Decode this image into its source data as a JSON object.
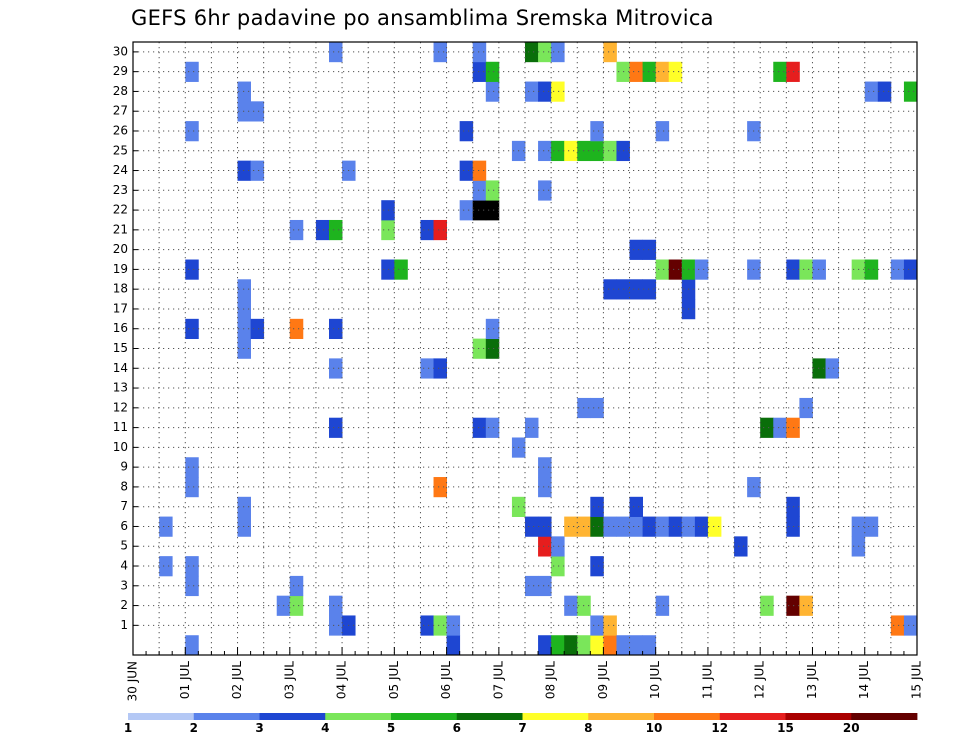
{
  "chart_data": {
    "type": "heatmap",
    "title": "GEFS 6hr padavine po ansamblima Sremska Mitrovica",
    "xlabel": "",
    "ylabel": "",
    "x_range": [
      "2016-06-30T00:00",
      "2016-07-15T00:00"
    ],
    "time_step_hours": 6,
    "x_tick_labels": [
      "30 JUN",
      "01 JUL",
      "02 JUL",
      "03 JUL",
      "04 JUL",
      "05 JUL",
      "06 JUL",
      "07 JUL",
      "08 JUL",
      "09 JUL",
      "10 JUL",
      "11 JUL",
      "12 JUL",
      "13 JUL",
      "14 JUL",
      "15 JUL"
    ],
    "y_tick_labels": [
      "1",
      "2",
      "3",
      "4",
      "5",
      "6",
      "7",
      "8",
      "9",
      "10",
      "11",
      "12",
      "13",
      "14",
      "15",
      "16",
      "17",
      "18",
      "19",
      "20",
      "21",
      "22",
      "23",
      "24",
      "25",
      "26",
      "27",
      "28",
      "29",
      "30"
    ],
    "y_range": [
      0,
      30
    ],
    "grid": true,
    "legend_placement": "bottom",
    "legend": {
      "labels": [
        "1",
        "2",
        "3",
        "4",
        "5",
        "6",
        "7",
        "8",
        "10",
        "12",
        "15",
        "20"
      ],
      "colors": [
        "#b4c8f5",
        "#5a82eb",
        "#1e46d2",
        "#7ae65a",
        "#1eb41e",
        "#0a6e0a",
        "#ffff28",
        "#ffb432",
        "#ff7814",
        "#e61e1e",
        "#aa0000",
        "#640000"
      ]
    },
    "cells": [
      [
        "2016-06-30T12:00",
        4,
        1
      ],
      [
        "2016-06-30T12:00",
        6,
        1
      ],
      [
        "2016-07-01T00:00",
        0,
        1
      ],
      [
        "2016-07-01T00:00",
        3,
        1
      ],
      [
        "2016-07-01T00:00",
        4,
        1
      ],
      [
        "2016-07-01T00:00",
        8,
        1
      ],
      [
        "2016-07-01T00:00",
        9,
        1
      ],
      [
        "2016-07-01T00:00",
        16,
        2
      ],
      [
        "2016-07-01T00:00",
        19,
        2
      ],
      [
        "2016-07-01T00:00",
        26,
        1
      ],
      [
        "2016-07-01T00:00",
        29,
        1
      ],
      [
        "2016-07-02T00:00",
        6,
        1
      ],
      [
        "2016-07-02T00:00",
        7,
        1
      ],
      [
        "2016-07-02T00:00",
        15,
        1
      ],
      [
        "2016-07-02T00:00",
        16,
        1
      ],
      [
        "2016-07-02T00:00",
        17,
        1
      ],
      [
        "2016-07-02T00:00",
        18,
        1
      ],
      [
        "2016-07-02T00:00",
        24,
        2
      ],
      [
        "2016-07-02T00:00",
        27,
        1
      ],
      [
        "2016-07-02T00:00",
        28,
        1
      ],
      [
        "2016-07-02T06:00",
        16,
        2
      ],
      [
        "2016-07-02T06:00",
        24,
        1
      ],
      [
        "2016-07-02T06:00",
        27,
        1
      ],
      [
        "2016-07-02T18:00",
        2,
        1
      ],
      [
        "2016-07-03T00:00",
        2,
        3
      ],
      [
        "2016-07-03T00:00",
        3,
        1
      ],
      [
        "2016-07-03T00:00",
        16,
        8
      ],
      [
        "2016-07-03T00:00",
        21,
        1
      ],
      [
        "2016-07-03T12:00",
        21,
        2
      ],
      [
        "2016-07-03T18:00",
        1,
        1
      ],
      [
        "2016-07-03T18:00",
        2,
        1
      ],
      [
        "2016-07-03T18:00",
        11,
        2
      ],
      [
        "2016-07-03T18:00",
        14,
        1
      ],
      [
        "2016-07-03T18:00",
        16,
        2
      ],
      [
        "2016-07-03T18:00",
        21,
        4
      ],
      [
        "2016-07-03T18:00",
        30,
        1
      ],
      [
        "2016-07-04T00:00",
        1,
        2
      ],
      [
        "2016-07-04T00:00",
        24,
        1
      ],
      [
        "2016-07-04T18:00",
        19,
        2
      ],
      [
        "2016-07-04T18:00",
        21,
        3
      ],
      [
        "2016-07-04T18:00",
        22,
        2
      ],
      [
        "2016-07-05T00:00",
        19,
        4
      ],
      [
        "2016-07-05T12:00",
        1,
        2
      ],
      [
        "2016-07-05T12:00",
        14,
        1
      ],
      [
        "2016-07-05T12:00",
        21,
        2
      ],
      [
        "2016-07-05T18:00",
        1,
        3
      ],
      [
        "2016-07-05T18:00",
        8,
        8
      ],
      [
        "2016-07-05T18:00",
        14,
        2
      ],
      [
        "2016-07-05T18:00",
        21,
        9
      ],
      [
        "2016-07-05T18:00",
        30,
        1
      ],
      [
        "2016-07-06T00:00",
        0,
        2
      ],
      [
        "2016-07-06T00:00",
        1,
        1
      ],
      [
        "2016-07-06T06:00",
        22,
        1
      ],
      [
        "2016-07-06T06:00",
        24,
        2
      ],
      [
        "2016-07-06T06:00",
        26,
        2
      ],
      [
        "2016-07-06T12:00",
        11,
        2
      ],
      [
        "2016-07-06T12:00",
        15,
        3
      ],
      [
        "2016-07-06T12:00",
        22,
        12
      ],
      [
        "2016-07-06T12:00",
        23,
        1
      ],
      [
        "2016-07-06T12:00",
        24,
        8
      ],
      [
        "2016-07-06T12:00",
        29,
        2
      ],
      [
        "2016-07-06T12:00",
        30,
        1
      ],
      [
        "2016-07-06T18:00",
        11,
        1
      ],
      [
        "2016-07-06T18:00",
        15,
        5
      ],
      [
        "2016-07-06T18:00",
        16,
        1
      ],
      [
        "2016-07-06T18:00",
        22,
        12
      ],
      [
        "2016-07-06T18:00",
        23,
        3
      ],
      [
        "2016-07-06T18:00",
        28,
        1
      ],
      [
        "2016-07-06T18:00",
        29,
        4
      ],
      [
        "2016-07-07T06:00",
        7,
        3
      ],
      [
        "2016-07-07T06:00",
        10,
        1
      ],
      [
        "2016-07-07T06:00",
        25,
        1
      ],
      [
        "2016-07-07T12:00",
        3,
        1
      ],
      [
        "2016-07-07T12:00",
        6,
        2
      ],
      [
        "2016-07-07T12:00",
        11,
        1
      ],
      [
        "2016-07-07T12:00",
        28,
        1
      ],
      [
        "2016-07-07T12:00",
        30,
        5
      ],
      [
        "2016-07-07T18:00",
        3,
        1
      ],
      [
        "2016-07-07T18:00",
        5,
        9
      ],
      [
        "2016-07-07T18:00",
        6,
        2
      ],
      [
        "2016-07-07T18:00",
        8,
        1
      ],
      [
        "2016-07-07T18:00",
        9,
        1
      ],
      [
        "2016-07-07T18:00",
        23,
        1
      ],
      [
        "2016-07-07T18:00",
        25,
        1
      ],
      [
        "2016-07-07T18:00",
        28,
        2
      ],
      [
        "2016-07-07T18:00",
        0,
        2
      ],
      [
        "2016-07-07T18:00",
        30,
        3
      ],
      [
        "2016-07-08T00:00",
        0,
        4
      ],
      [
        "2016-07-08T00:00",
        4,
        3
      ],
      [
        "2016-07-08T00:00",
        5,
        1
      ],
      [
        "2016-07-08T00:00",
        25,
        4
      ],
      [
        "2016-07-08T00:00",
        28,
        6
      ],
      [
        "2016-07-08T00:00",
        30,
        1
      ],
      [
        "2016-07-08T06:00",
        0,
        5
      ],
      [
        "2016-07-08T06:00",
        2,
        1
      ],
      [
        "2016-07-08T06:00",
        6,
        7
      ],
      [
        "2016-07-08T06:00",
        25,
        6
      ],
      [
        "2016-07-08T12:00",
        0,
        3
      ],
      [
        "2016-07-08T12:00",
        2,
        3
      ],
      [
        "2016-07-08T12:00",
        6,
        7
      ],
      [
        "2016-07-08T12:00",
        12,
        1
      ],
      [
        "2016-07-08T12:00",
        25,
        4
      ],
      [
        "2016-07-08T18:00",
        0,
        6
      ],
      [
        "2016-07-08T18:00",
        1,
        1
      ],
      [
        "2016-07-08T18:00",
        4,
        2
      ],
      [
        "2016-07-08T18:00",
        6,
        5
      ],
      [
        "2016-07-08T18:00",
        7,
        2
      ],
      [
        "2016-07-08T18:00",
        12,
        1
      ],
      [
        "2016-07-08T18:00",
        25,
        4
      ],
      [
        "2016-07-08T18:00",
        26,
        1
      ],
      [
        "2016-07-09T00:00",
        0,
        8
      ],
      [
        "2016-07-09T00:00",
        1,
        7
      ],
      [
        "2016-07-09T00:00",
        6,
        1
      ],
      [
        "2016-07-09T00:00",
        18,
        2
      ],
      [
        "2016-07-09T00:00",
        25,
        3
      ],
      [
        "2016-07-09T00:00",
        30,
        7
      ],
      [
        "2016-07-09T06:00",
        0,
        1
      ],
      [
        "2016-07-09T06:00",
        6,
        1
      ],
      [
        "2016-07-09T06:00",
        18,
        2
      ],
      [
        "2016-07-09T06:00",
        25,
        2
      ],
      [
        "2016-07-09T06:00",
        29,
        3
      ],
      [
        "2016-07-09T12:00",
        0,
        1
      ],
      [
        "2016-07-09T12:00",
        6,
        1
      ],
      [
        "2016-07-09T12:00",
        7,
        2
      ],
      [
        "2016-07-09T12:00",
        18,
        2
      ],
      [
        "2016-07-09T12:00",
        20,
        2
      ],
      [
        "2016-07-09T12:00",
        29,
        8
      ],
      [
        "2016-07-09T18:00",
        0,
        1
      ],
      [
        "2016-07-09T18:00",
        6,
        2
      ],
      [
        "2016-07-09T18:00",
        18,
        2
      ],
      [
        "2016-07-09T18:00",
        20,
        2
      ],
      [
        "2016-07-09T18:00",
        29,
        4
      ],
      [
        "2016-07-10T00:00",
        2,
        1
      ],
      [
        "2016-07-10T00:00",
        6,
        1
      ],
      [
        "2016-07-10T00:00",
        19,
        3
      ],
      [
        "2016-07-10T00:00",
        26,
        1
      ],
      [
        "2016-07-10T00:00",
        29,
        7
      ],
      [
        "2016-07-10T06:00",
        6,
        2
      ],
      [
        "2016-07-10T06:00",
        19,
        11
      ],
      [
        "2016-07-10T06:00",
        29,
        6
      ],
      [
        "2016-07-10T12:00",
        6,
        1
      ],
      [
        "2016-07-10T12:00",
        17,
        2
      ],
      [
        "2016-07-10T12:00",
        18,
        2
      ],
      [
        "2016-07-10T12:00",
        19,
        4
      ],
      [
        "2016-07-10T18:00",
        6,
        2
      ],
      [
        "2016-07-10T18:00",
        19,
        1
      ],
      [
        "2016-07-11T00:00",
        6,
        6
      ],
      [
        "2016-07-11T12:00",
        5,
        2
      ],
      [
        "2016-07-11T18:00",
        8,
        1
      ],
      [
        "2016-07-11T18:00",
        19,
        1
      ],
      [
        "2016-07-11T18:00",
        26,
        1
      ],
      [
        "2016-07-12T00:00",
        2,
        3
      ],
      [
        "2016-07-12T00:00",
        11,
        5
      ],
      [
        "2016-07-12T06:00",
        11,
        1
      ],
      [
        "2016-07-12T06:00",
        29,
        4
      ],
      [
        "2016-07-12T12:00",
        2,
        11
      ],
      [
        "2016-07-12T12:00",
        6,
        2
      ],
      [
        "2016-07-12T12:00",
        7,
        2
      ],
      [
        "2016-07-12T12:00",
        11,
        8
      ],
      [
        "2016-07-12T12:00",
        19,
        2
      ],
      [
        "2016-07-12T12:00",
        29,
        9
      ],
      [
        "2016-07-12T18:00",
        2,
        7
      ],
      [
        "2016-07-12T18:00",
        12,
        1
      ],
      [
        "2016-07-12T18:00",
        19,
        3
      ],
      [
        "2016-07-13T00:00",
        14,
        5
      ],
      [
        "2016-07-13T00:00",
        19,
        1
      ],
      [
        "2016-07-13T06:00",
        14,
        1
      ],
      [
        "2016-07-13T18:00",
        5,
        1
      ],
      [
        "2016-07-13T18:00",
        6,
        1
      ],
      [
        "2016-07-13T18:00",
        19,
        3
      ],
      [
        "2016-07-14T00:00",
        6,
        1
      ],
      [
        "2016-07-14T00:00",
        19,
        4
      ],
      [
        "2016-07-14T00:00",
        28,
        1
      ],
      [
        "2016-07-14T06:00",
        28,
        2
      ],
      [
        "2016-07-14T12:00",
        1,
        8
      ],
      [
        "2016-07-14T12:00",
        19,
        1
      ],
      [
        "2016-07-14T18:00",
        1,
        1
      ],
      [
        "2016-07-14T18:00",
        19,
        2
      ],
      [
        "2016-07-14T18:00",
        28,
        4
      ]
    ]
  }
}
